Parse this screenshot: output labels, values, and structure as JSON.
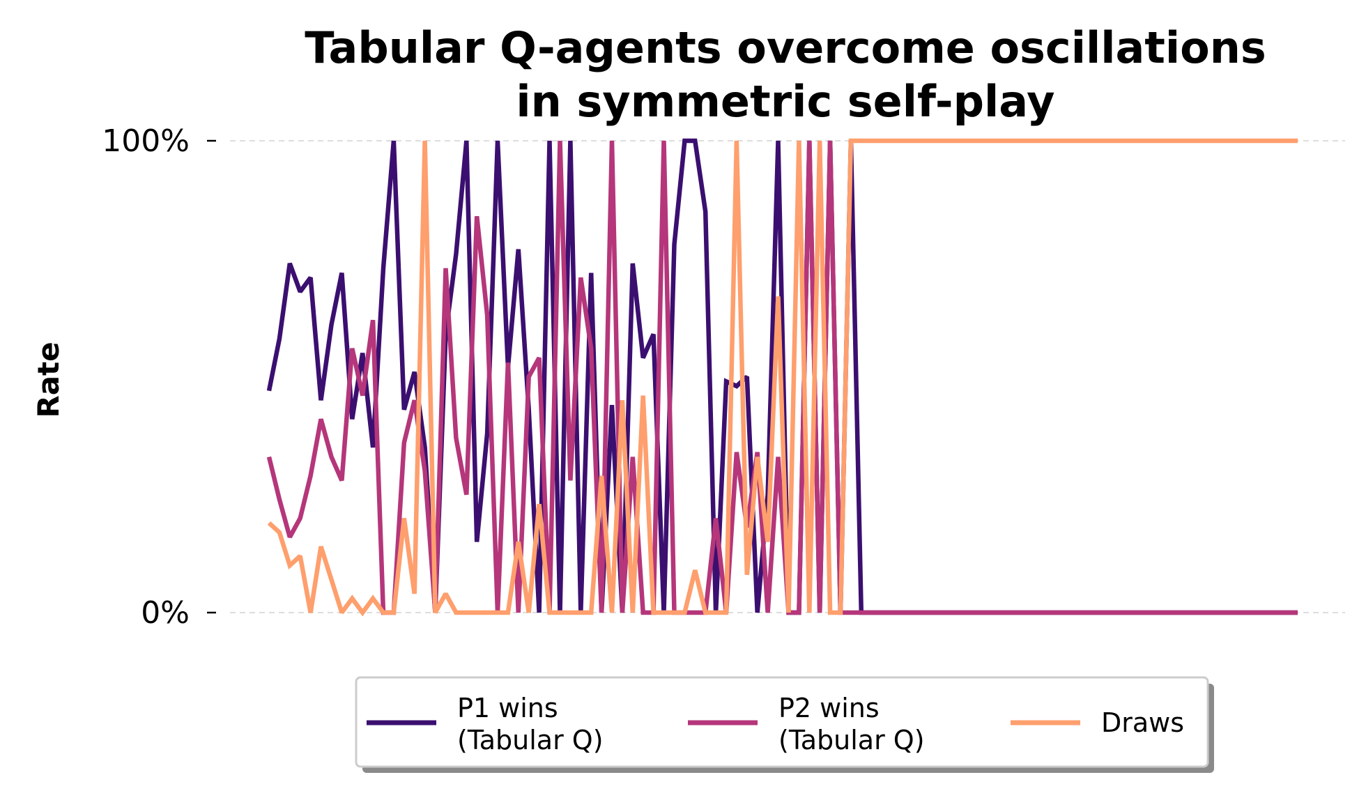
{
  "chart_data": {
    "type": "line",
    "title": [
      "Tabular Q-agents overcome oscillations",
      "in symmetric self-play"
    ],
    "xlabel": "",
    "ylabel": "Rate",
    "ylim": [
      0,
      1
    ],
    "yticks": [
      0,
      1
    ],
    "ytick_labels": [
      "0%",
      "100%"
    ],
    "grid": "horizontal dashed",
    "legend": "bottom-center, 3 columns, shadow",
    "x": [
      0,
      1,
      2,
      3,
      4,
      5,
      6,
      7,
      8,
      9,
      10,
      11,
      12,
      13,
      14,
      15,
      16,
      17,
      18,
      19,
      20,
      21,
      22,
      23,
      24,
      25,
      26,
      27,
      28,
      29,
      30,
      31,
      32,
      33,
      34,
      35,
      36,
      37,
      38,
      39,
      40,
      41,
      42,
      43,
      44,
      45,
      46,
      47,
      48,
      49,
      50,
      51,
      52,
      53,
      54,
      55,
      56,
      57,
      58,
      59,
      60,
      61,
      62,
      63,
      64,
      65,
      66,
      67,
      68,
      69,
      70,
      71,
      72,
      73,
      74,
      75,
      76,
      77,
      78,
      79,
      80,
      81,
      82,
      83,
      84,
      85,
      86,
      87,
      88,
      89,
      90,
      91,
      92,
      93,
      94,
      95,
      96,
      97,
      98,
      99
    ],
    "series": [
      {
        "name": "P1 wins\n(Tabular Q)",
        "color": "#3b0f70",
        "values": [
          0.47,
          0.58,
          0.74,
          0.68,
          0.71,
          0.45,
          0.61,
          0.72,
          0.41,
          0.55,
          0.35,
          0.73,
          1.0,
          0.43,
          0.51,
          0.35,
          0.0,
          0.59,
          0.76,
          1.0,
          0.15,
          0.38,
          1.0,
          0.52,
          0.77,
          0.43,
          0.0,
          1.0,
          0.0,
          1.0,
          0.0,
          0.72,
          0.0,
          0.44,
          0.0,
          0.74,
          0.54,
          0.59,
          0.0,
          0.78,
          1.0,
          1.0,
          0.85,
          0.0,
          0.49,
          0.48,
          0.5,
          0.0,
          0.25,
          1.0,
          0.0,
          0.0,
          1.0,
          0.0,
          1.0,
          0.0,
          1.0,
          0.0,
          0.0,
          0.0,
          0.0,
          0.0,
          0.0,
          0.0,
          0.0,
          0.0,
          0.0,
          0.0,
          0.0,
          0.0,
          0.0,
          0.0,
          0.0,
          0.0,
          0.0,
          0.0,
          0.0,
          0.0,
          0.0,
          0.0,
          0.0,
          0.0,
          0.0,
          0.0,
          0.0,
          0.0,
          0.0,
          0.0,
          0.0,
          0.0,
          0.0,
          0.0,
          0.0,
          0.0,
          0.0,
          0.0,
          0.0,
          0.0,
          0.0,
          0.0
        ]
      },
      {
        "name": "P2 wins\n(Tabular Q)",
        "color": "#b5367a",
        "values": [
          0.33,
          0.24,
          0.16,
          0.2,
          0.29,
          0.41,
          0.33,
          0.28,
          0.56,
          0.46,
          0.62,
          0.0,
          0.0,
          0.36,
          0.45,
          0.3,
          0.0,
          0.73,
          0.37,
          0.25,
          0.84,
          0.63,
          0.0,
          0.53,
          0.0,
          0.5,
          0.54,
          0.0,
          1.0,
          0.28,
          0.71,
          0.56,
          0.0,
          1.0,
          0.0,
          0.33,
          0.0,
          0.0,
          1.0,
          0.0,
          0.0,
          0.0,
          0.0,
          0.2,
          0.0,
          0.34,
          0.18,
          0.34,
          0.0,
          0.33,
          0.0,
          0.0,
          1.0,
          0.0,
          1.0,
          0.0,
          0.0,
          0.0,
          0.0,
          0.0,
          0.0,
          0.0,
          0.0,
          0.0,
          0.0,
          0.0,
          0.0,
          0.0,
          0.0,
          0.0,
          0.0,
          0.0,
          0.0,
          0.0,
          0.0,
          0.0,
          0.0,
          0.0,
          0.0,
          0.0,
          0.0,
          0.0,
          0.0,
          0.0,
          0.0,
          0.0,
          0.0,
          0.0,
          0.0,
          0.0,
          0.0,
          0.0,
          0.0,
          0.0,
          0.0,
          0.0,
          0.0,
          0.0,
          0.0,
          0.0
        ]
      },
      {
        "name": "Draws",
        "color": "#fe9f6d",
        "values": [
          0.19,
          0.17,
          0.1,
          0.12,
          0.0,
          0.14,
          0.07,
          0.0,
          0.03,
          0.0,
          0.03,
          0.0,
          0.0,
          0.2,
          0.04,
          1.0,
          0.0,
          0.04,
          0.0,
          0.0,
          0.0,
          0.0,
          0.0,
          0.0,
          0.15,
          0.0,
          0.23,
          0.0,
          0.0,
          0.0,
          0.0,
          0.0,
          0.29,
          0.0,
          0.45,
          0.0,
          0.46,
          0.0,
          0.0,
          0.0,
          0.0,
          0.09,
          0.0,
          0.0,
          0.0,
          1.0,
          0.08,
          0.33,
          0.15,
          0.67,
          0.0,
          1.0,
          0.0,
          1.0,
          0.0,
          0.0,
          1.0,
          1.0,
          1.0,
          1.0,
          1.0,
          1.0,
          1.0,
          1.0,
          1.0,
          1.0,
          1.0,
          1.0,
          1.0,
          1.0,
          1.0,
          1.0,
          1.0,
          1.0,
          1.0,
          1.0,
          1.0,
          1.0,
          1.0,
          1.0,
          1.0,
          1.0,
          1.0,
          1.0,
          1.0,
          1.0,
          1.0,
          1.0,
          1.0,
          1.0,
          1.0,
          1.0,
          1.0,
          1.0,
          1.0,
          1.0,
          1.0,
          1.0,
          1.0,
          1.0
        ]
      }
    ]
  }
}
